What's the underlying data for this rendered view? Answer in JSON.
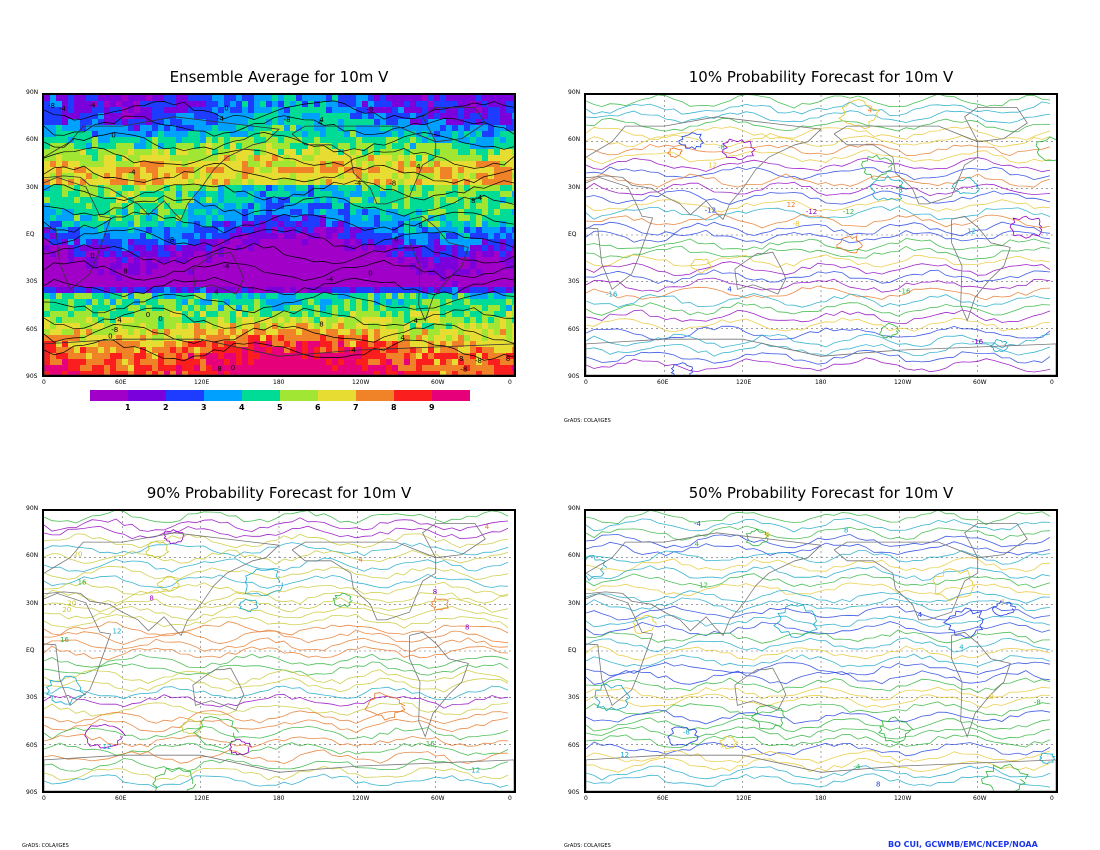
{
  "panels": [
    {
      "id": "p1",
      "title": "Ensemble Average for 10m V",
      "type": "shaded"
    },
    {
      "id": "p2",
      "title": "10% Probability Forecast for 10m V",
      "type": "contour"
    },
    {
      "id": "p3",
      "title": "90% Probability Forecast for 10m V",
      "type": "contour"
    },
    {
      "id": "p4",
      "title": "50% Probability Forecast for 10m V",
      "type": "contour"
    }
  ],
  "lat_labels": [
    "90N",
    "60N",
    "30N",
    "EQ",
    "30S",
    "60S",
    "90S"
  ],
  "lon_labels": [
    "0",
    "60E",
    "120E",
    "180",
    "120W",
    "60W",
    "0"
  ],
  "colorbar": {
    "labels": [
      "1",
      "2",
      "3",
      "4",
      "5",
      "6",
      "7",
      "8",
      "9"
    ],
    "colors": [
      "#a000c8",
      "#7a00dc",
      "#1e3cff",
      "#00a0ff",
      "#00dc96",
      "#a0e632",
      "#e6dc32",
      "#f08228",
      "#fa1e1e",
      "#e6007a"
    ]
  },
  "credits": {
    "p2": "GrADS: COLA/IGES",
    "p3": "GrADS: COLA/IGES",
    "p4": "GrADS: COLA/IGES"
  },
  "author": "BO CUI, GCWMB/EMC/NCEP/NOAA",
  "contour_labels": {
    "p1": [
      "0",
      "4",
      "-4",
      "8",
      "-8"
    ],
    "p2": [
      "-12",
      "-16",
      "-8",
      "12",
      "4"
    ],
    "p3": [
      "12",
      "16",
      "20",
      "8",
      "4"
    ],
    "p4": [
      "4",
      "-4",
      "8",
      "-8",
      "12"
    ]
  }
}
